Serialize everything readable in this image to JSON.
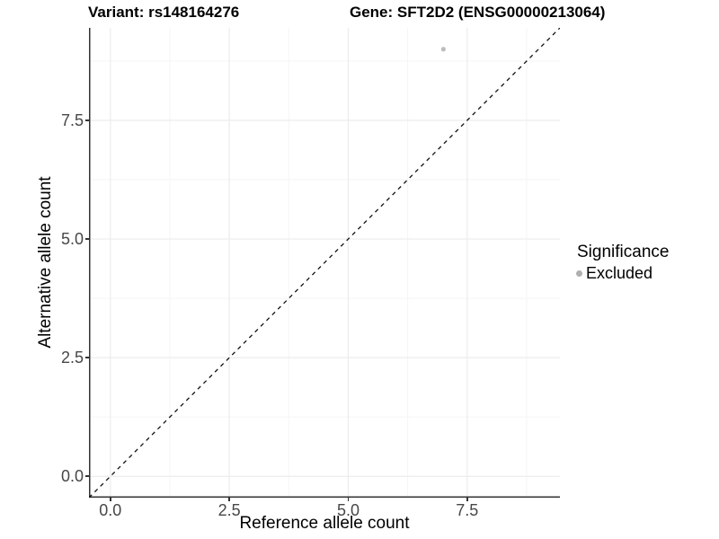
{
  "figure": {
    "title_variant": "Variant: rs148164276",
    "title_gene": "Gene: SFT2D2 (ENSG00000213064)"
  },
  "chart_data": {
    "type": "scatter",
    "title_left": "Variant: rs148164276",
    "title_right": "Gene: SFT2D2 (ENSG00000213064)",
    "xlabel": "Reference allele count",
    "ylabel": "Alternative allele count",
    "xlim": [
      -0.45,
      9.45
    ],
    "ylim": [
      -0.45,
      9.45
    ],
    "x_major_breaks": [
      0,
      2.5,
      5,
      7.5
    ],
    "x_minor_breaks": [
      1.25,
      3.75,
      6.25,
      8.75
    ],
    "y_major_breaks": [
      0,
      2.5,
      5,
      7.5
    ],
    "y_minor_breaks": [
      1.25,
      3.75,
      6.25,
      8.75
    ],
    "x_tick_labels": [
      "0.0",
      "2.5",
      "5.0",
      "7.5"
    ],
    "y_tick_labels": [
      "0.0",
      "2.5",
      "5.0",
      "7.5"
    ],
    "grid": "major and minor, very light gray, white panel",
    "series": [
      {
        "name": "Excluded",
        "color": "#bdbdbd",
        "points": [
          {
            "x": 7,
            "y": 9
          }
        ]
      }
    ],
    "reference_line": {
      "type": "identity",
      "style": "dashed",
      "from": [
        -0.45,
        -0.45
      ],
      "to": [
        9.45,
        9.45
      ],
      "color": "#111111"
    },
    "legend": {
      "title": "Significance",
      "position": "right",
      "items": [
        {
          "label": "Excluded",
          "color": "#b0b0b0"
        }
      ]
    }
  },
  "colors": {
    "background": "#ffffff",
    "axis_line": "#333333",
    "tick_label": "#474747",
    "grid_major": "#ececec",
    "grid_minor": "#f5f5f5",
    "point": "#bdbdbd"
  }
}
